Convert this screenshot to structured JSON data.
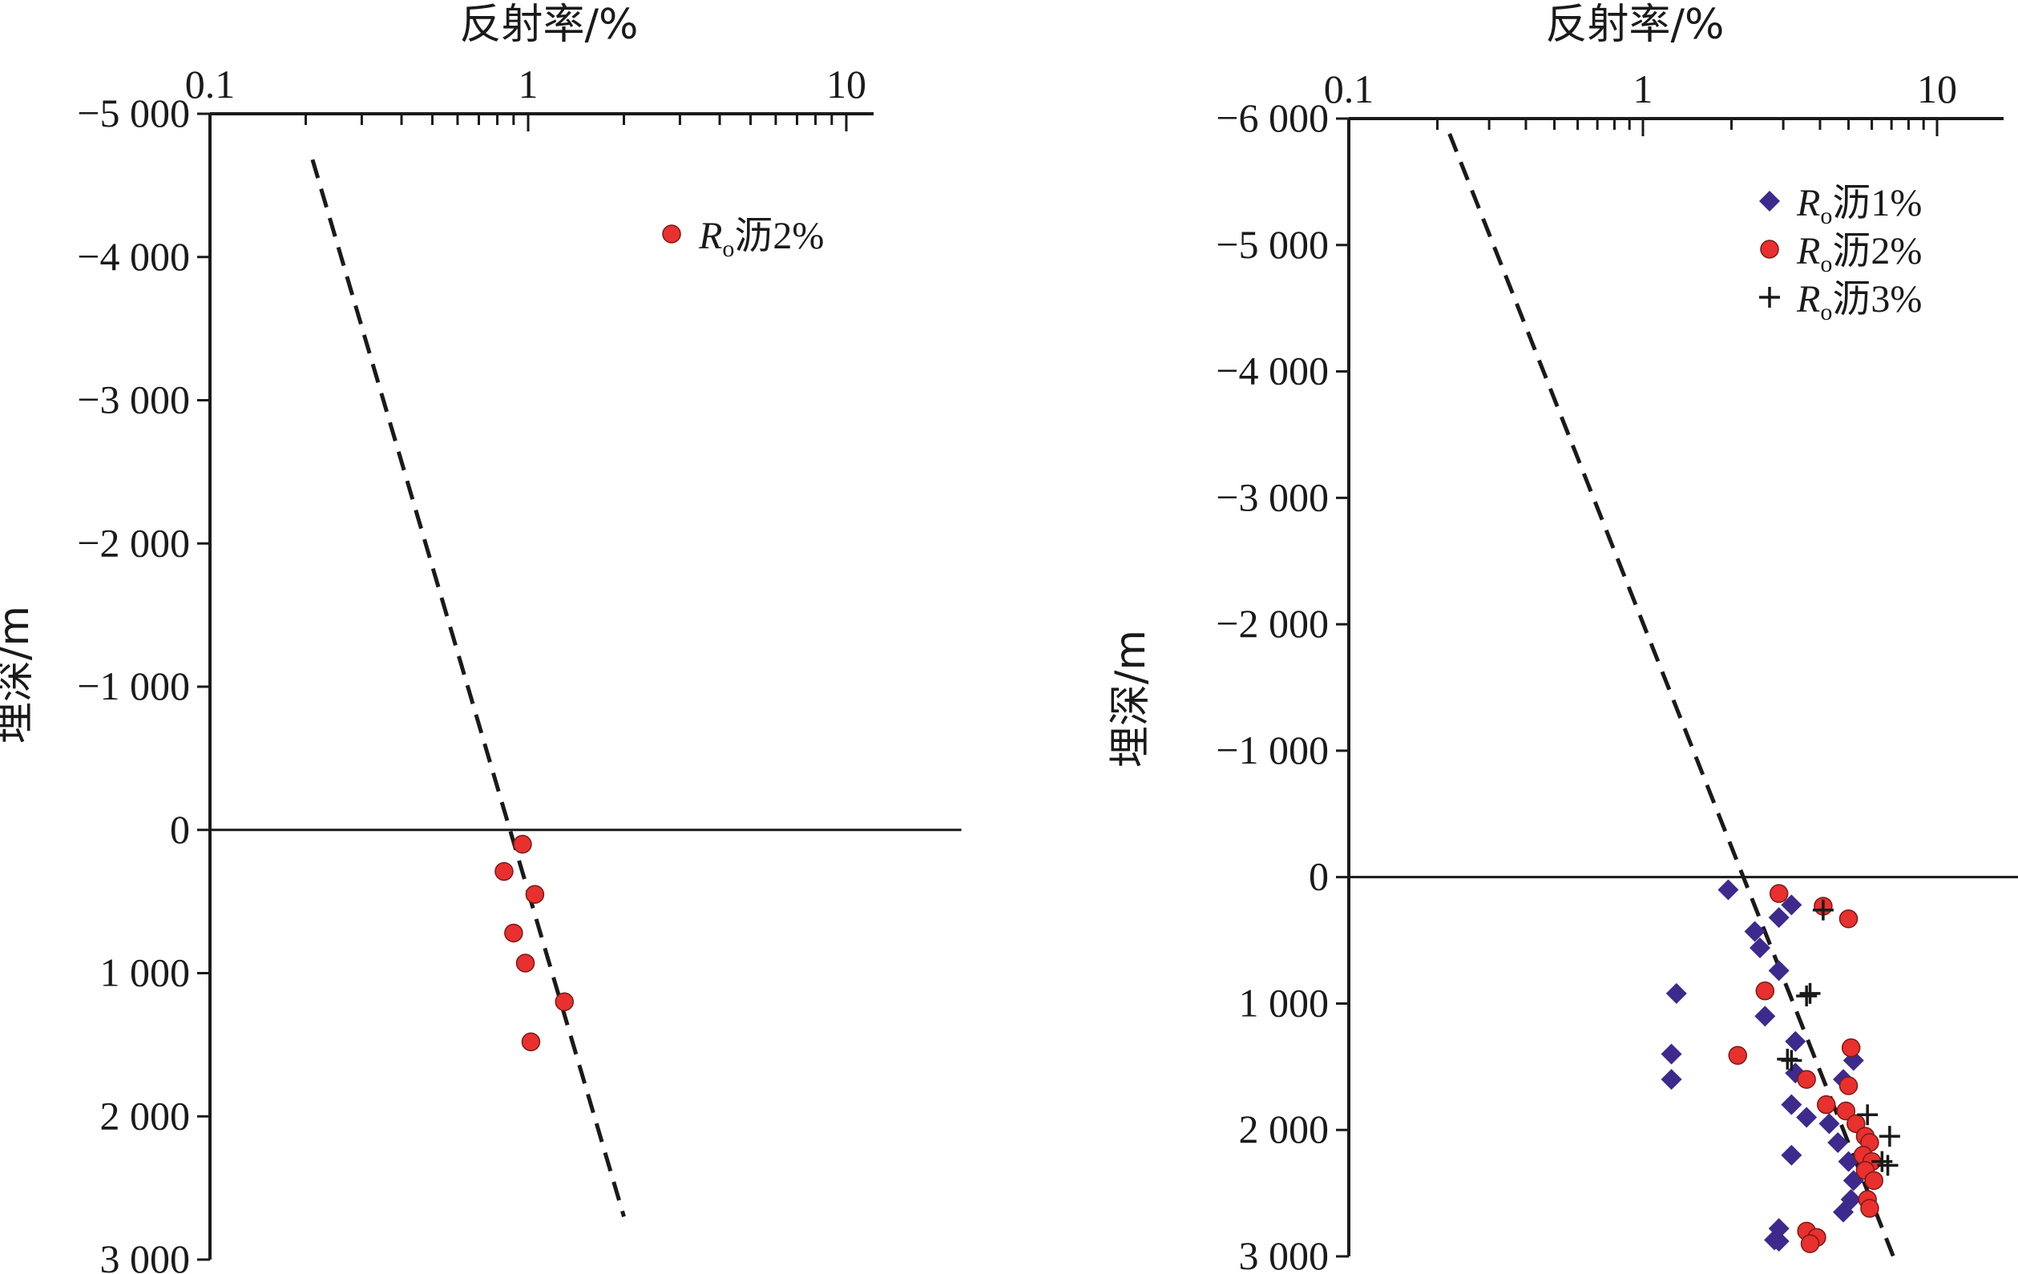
{
  "chart_data": [
    {
      "type": "scatter",
      "title": "",
      "xlabel": "反射率/%",
      "ylabel": "埋深/m",
      "x_scale": "log",
      "x_axis_position": "top",
      "xlim": [
        0.1,
        10
      ],
      "ylim": [
        -5000,
        3000
      ],
      "y_inverted": false,
      "grid": false,
      "legend_position": "top-right",
      "x_tick_labels": [
        "0.1",
        "1",
        "10"
      ],
      "y_tick_labels": [
        "−5 000",
        "−4 000",
        "−3 000",
        "−2 000",
        "−1 000",
        "0",
        "1 000",
        "2 000",
        "3 000"
      ],
      "x_ticks": [
        0.1,
        1,
        10
      ],
      "y_ticks": [
        -5000,
        -4000,
        -3000,
        -2000,
        -1000,
        0,
        1000,
        2000,
        3000
      ],
      "zero_line": {
        "y": 0,
        "x_end": 23
      },
      "trend_line": {
        "style": "dashed",
        "color": "#1a1a1a",
        "points": [
          [
            0.21,
            -4680
          ],
          [
            2.0,
            2700
          ]
        ]
      },
      "series": [
        {
          "name": "Ro沥2%",
          "legend_label": {
            "symbol": "R",
            "subscript": "o",
            "text": "沥2%"
          },
          "marker": "circle",
          "color": "#e8302e",
          "points": [
            [
              0.96,
              100
            ],
            [
              0.84,
              290
            ],
            [
              1.05,
              450
            ],
            [
              0.9,
              720
            ],
            [
              0.98,
              930
            ],
            [
              1.3,
              1200
            ],
            [
              1.02,
              1480
            ]
          ]
        }
      ]
    },
    {
      "type": "scatter",
      "title": "",
      "xlabel": "反射率/%",
      "ylabel": "埋深/m",
      "x_scale": "log",
      "x_axis_position": "top",
      "xlim": [
        0.1,
        10
      ],
      "ylim": [
        -6000,
        3000
      ],
      "y_inverted": false,
      "grid": false,
      "legend_position": "top-right",
      "x_tick_labels": [
        "0.1",
        "1",
        "10"
      ],
      "y_tick_labels": [
        "−6 000",
        "−5 000",
        "−4 000",
        "−3 000",
        "−2 000",
        "−1 000",
        "0",
        "1 000",
        "2 000",
        "3 000"
      ],
      "x_ticks": [
        0.1,
        1,
        10
      ],
      "y_ticks": [
        -6000,
        -5000,
        -4000,
        -3000,
        -2000,
        -1000,
        0,
        1000,
        2000,
        3000
      ],
      "zero_line": {
        "y": 0,
        "x_end": 25
      },
      "trend_line": {
        "style": "dashed",
        "color": "#1a1a1a",
        "points": [
          [
            0.22,
            -5880
          ],
          [
            7.1,
            3000
          ]
        ]
      },
      "series": [
        {
          "name": "Ro沥1%",
          "legend_label": {
            "symbol": "R",
            "subscript": "o",
            "text": "沥1%"
          },
          "marker": "diamond",
          "color": "#3d2a8c",
          "points": [
            [
              1.95,
              100
            ],
            [
              3.2,
              220
            ],
            [
              2.9,
              320
            ],
            [
              2.4,
              430
            ],
            [
              2.5,
              560
            ],
            [
              2.9,
              740
            ],
            [
              1.3,
              920
            ],
            [
              2.6,
              1100
            ],
            [
              3.3,
              1300
            ],
            [
              5.2,
              1450
            ],
            [
              1.25,
              1400
            ],
            [
              1.25,
              1600
            ],
            [
              3.3,
              1550
            ],
            [
              4.8,
              1600
            ],
            [
              3.2,
              1800
            ],
            [
              3.6,
              1900
            ],
            [
              4.3,
              1950
            ],
            [
              4.6,
              2100
            ],
            [
              5.0,
              2250
            ],
            [
              5.2,
              2400
            ],
            [
              5.1,
              2550
            ],
            [
              4.8,
              2650
            ],
            [
              2.9,
              2780
            ],
            [
              2.8,
              2870
            ],
            [
              2.9,
              2880
            ],
            [
              3.2,
              2200
            ]
          ]
        },
        {
          "name": "Ro沥2%",
          "legend_label": {
            "symbol": "R",
            "subscript": "o",
            "text": "沥2%"
          },
          "marker": "circle",
          "color": "#e8302e",
          "points": [
            [
              2.9,
              130
            ],
            [
              4.1,
              230
            ],
            [
              5.0,
              330
            ],
            [
              2.6,
              900
            ],
            [
              5.1,
              1350
            ],
            [
              2.1,
              1410
            ],
            [
              3.6,
              1600
            ],
            [
              5.0,
              1650
            ],
            [
              4.2,
              1800
            ],
            [
              4.9,
              1850
            ],
            [
              5.3,
              1950
            ],
            [
              5.7,
              2050
            ],
            [
              5.9,
              2100
            ],
            [
              5.6,
              2200
            ],
            [
              6.0,
              2250
            ],
            [
              5.7,
              2320
            ],
            [
              6.1,
              2400
            ],
            [
              5.8,
              2550
            ],
            [
              5.9,
              2620
            ],
            [
              3.6,
              2800
            ],
            [
              3.9,
              2850
            ],
            [
              3.7,
              2900
            ]
          ]
        },
        {
          "name": "Ro沥3%",
          "legend_label": {
            "symbol": "R",
            "subscript": "o",
            "text": "沥3%"
          },
          "marker": "plus",
          "color": "#1a1a1a",
          "points": [
            [
              4.1,
              260
            ],
            [
              3.7,
              920
            ],
            [
              3.6,
              940
            ],
            [
              3.1,
              1440
            ],
            [
              3.2,
              1450
            ],
            [
              5.8,
              1880
            ],
            [
              6.9,
              2050
            ],
            [
              6.5,
              2250
            ],
            [
              6.8,
              2280
            ]
          ]
        }
      ]
    }
  ]
}
